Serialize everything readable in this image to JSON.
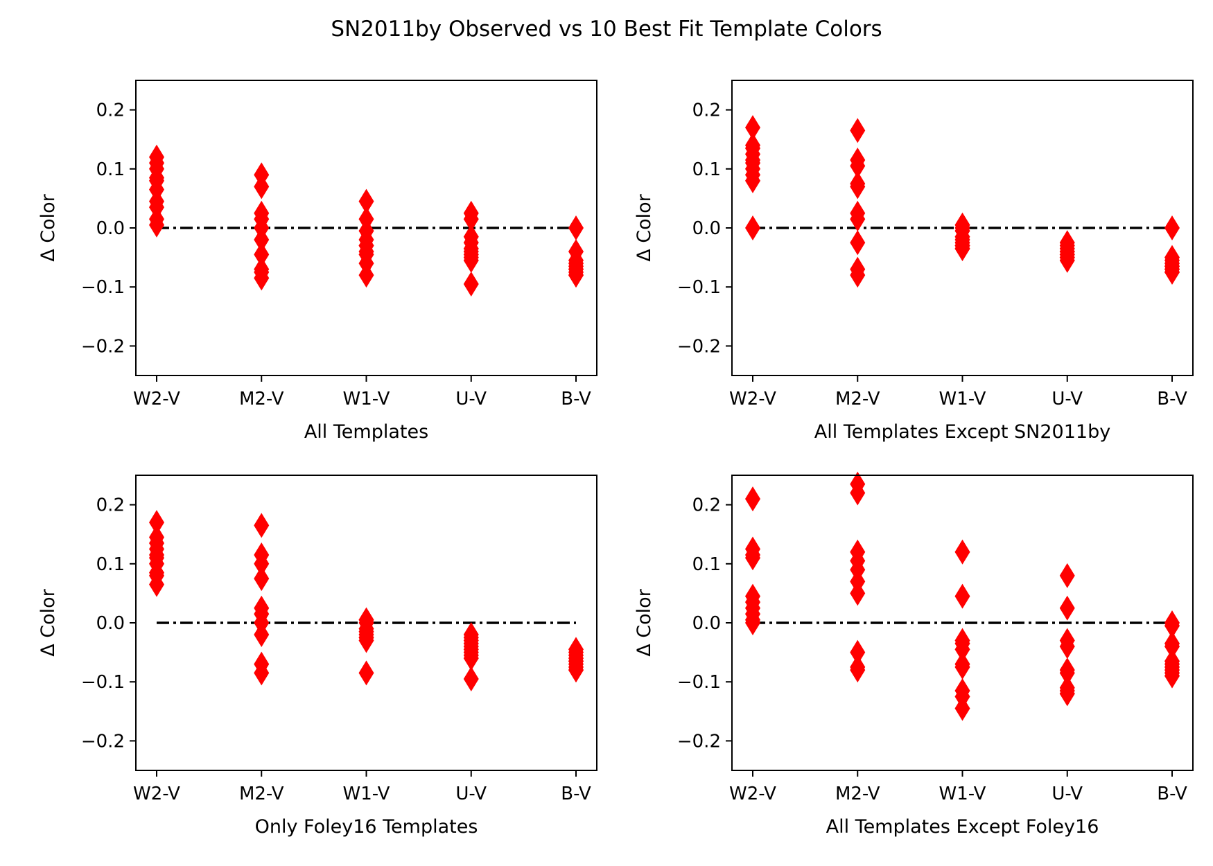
{
  "suptitle": "SN2011by Observed vs 10 Best Fit Template Colors",
  "colors": {
    "marker": "#ff0000",
    "zero_line": "#000000",
    "axes": "#000000",
    "background": "#ffffff"
  },
  "chart_data": [
    {
      "type": "scatter",
      "marker": "diamond",
      "xlabel": "All Templates",
      "ylabel": "Δ Color",
      "categories": [
        "W2-V",
        "M2-V",
        "W1-V",
        "U-V",
        "B-V"
      ],
      "ylim": [
        -0.25,
        0.25
      ],
      "yticks": [
        -0.2,
        -0.1,
        0.0,
        0.1,
        0.2
      ],
      "ytick_labels": [
        "−0.2",
        "−0.1",
        "0.0",
        "0.1",
        "0.2"
      ],
      "reference_line": {
        "y": 0.0,
        "style": "dash-dot"
      },
      "series": [
        {
          "category": "W2-V",
          "values": [
            0.12,
            0.11,
            0.1,
            0.085,
            0.08,
            0.065,
            0.045,
            0.035,
            0.015,
            0.005
          ]
        },
        {
          "category": "M2-V",
          "values": [
            0.09,
            0.07,
            0.025,
            0.015,
            0.0,
            -0.02,
            -0.045,
            -0.07,
            -0.075,
            -0.085
          ]
        },
        {
          "category": "W1-V",
          "values": [
            0.045,
            0.015,
            -0.005,
            -0.02,
            -0.03,
            -0.03,
            -0.04,
            -0.045,
            -0.06,
            -0.08
          ]
        },
        {
          "category": "U-V",
          "values": [
            0.025,
            0.015,
            -0.015,
            -0.025,
            -0.035,
            -0.04,
            -0.045,
            -0.05,
            -0.055,
            -0.095
          ]
        },
        {
          "category": "B-V",
          "values": [
            0.0,
            -0.04,
            -0.055,
            -0.06,
            -0.065,
            -0.07,
            -0.07,
            -0.075,
            -0.08,
            -0.08
          ]
        }
      ]
    },
    {
      "type": "scatter",
      "marker": "diamond",
      "xlabel": "All Templates Except SN2011by",
      "ylabel": "Δ Color",
      "categories": [
        "W2-V",
        "M2-V",
        "W1-V",
        "U-V",
        "B-V"
      ],
      "ylim": [
        -0.25,
        0.25
      ],
      "yticks": [
        -0.2,
        -0.1,
        0.0,
        0.1,
        0.2
      ],
      "ytick_labels": [
        "−0.2",
        "−0.1",
        "0.0",
        "0.1",
        "0.2"
      ],
      "reference_line": {
        "y": 0.0,
        "style": "dash-dot"
      },
      "series": [
        {
          "category": "W2-V",
          "values": [
            0.17,
            0.14,
            0.135,
            0.125,
            0.115,
            0.11,
            0.1,
            0.09,
            0.08,
            0.0
          ]
        },
        {
          "category": "M2-V",
          "values": [
            0.165,
            0.115,
            0.105,
            0.075,
            0.07,
            0.025,
            0.015,
            -0.025,
            -0.07,
            -0.08
          ]
        },
        {
          "category": "W1-V",
          "values": [
            0.005,
            0.0,
            -0.005,
            -0.015,
            -0.02,
            -0.025,
            -0.03,
            -0.03,
            -0.035,
            -0.035
          ]
        },
        {
          "category": "U-V",
          "values": [
            -0.025,
            -0.03,
            -0.035,
            -0.04,
            -0.04,
            -0.045,
            -0.045,
            -0.05,
            -0.05,
            -0.055
          ]
        },
        {
          "category": "B-V",
          "values": [
            0.0,
            -0.05,
            -0.055,
            -0.06,
            -0.065,
            -0.065,
            -0.07,
            -0.07,
            -0.075,
            -0.075
          ]
        }
      ]
    },
    {
      "type": "scatter",
      "marker": "diamond",
      "xlabel": "Only Foley16 Templates",
      "ylabel": "Δ Color",
      "categories": [
        "W2-V",
        "M2-V",
        "W1-V",
        "U-V",
        "B-V"
      ],
      "ylim": [
        -0.25,
        0.25
      ],
      "yticks": [
        -0.2,
        -0.1,
        0.0,
        0.1,
        0.2
      ],
      "ytick_labels": [
        "−0.2",
        "−0.1",
        "0.0",
        "0.1",
        "0.2"
      ],
      "reference_line": {
        "y": 0.0,
        "style": "dash-dot"
      },
      "series": [
        {
          "category": "W2-V",
          "values": [
            0.17,
            0.145,
            0.135,
            0.125,
            0.115,
            0.11,
            0.1,
            0.085,
            0.08,
            0.065
          ]
        },
        {
          "category": "M2-V",
          "values": [
            0.165,
            0.115,
            0.1,
            0.075,
            0.025,
            0.015,
            0.0,
            -0.02,
            -0.07,
            -0.085
          ]
        },
        {
          "category": "W1-V",
          "values": [
            0.005,
            0.005,
            0.0,
            -0.01,
            -0.015,
            -0.02,
            -0.025,
            -0.025,
            -0.03,
            -0.085
          ]
        },
        {
          "category": "U-V",
          "values": [
            -0.02,
            -0.025,
            -0.03,
            -0.035,
            -0.04,
            -0.045,
            -0.05,
            -0.055,
            -0.06,
            -0.095
          ]
        },
        {
          "category": "B-V",
          "values": [
            -0.045,
            -0.05,
            -0.055,
            -0.06,
            -0.065,
            -0.065,
            -0.07,
            -0.075,
            -0.08,
            -0.08
          ]
        }
      ]
    },
    {
      "type": "scatter",
      "marker": "diamond",
      "xlabel": "All Templates Except Foley16",
      "ylabel": "Δ Color",
      "categories": [
        "W2-V",
        "M2-V",
        "W1-V",
        "U-V",
        "B-V"
      ],
      "ylim": [
        -0.25,
        0.25
      ],
      "yticks": [
        -0.2,
        -0.1,
        0.0,
        0.1,
        0.2
      ],
      "ytick_labels": [
        "−0.2",
        "−0.1",
        "0.0",
        "0.1",
        "0.2"
      ],
      "reference_line": {
        "y": 0.0,
        "style": "dash-dot"
      },
      "series": [
        {
          "category": "W2-V",
          "values": [
            0.21,
            0.125,
            0.115,
            0.11,
            0.045,
            0.035,
            0.025,
            0.015,
            0.005,
            0.0
          ]
        },
        {
          "category": "M2-V",
          "values": [
            0.235,
            0.22,
            0.12,
            0.105,
            0.09,
            0.07,
            0.05,
            -0.05,
            -0.075,
            -0.08
          ]
        },
        {
          "category": "W1-V",
          "values": [
            0.12,
            0.045,
            -0.03,
            -0.035,
            -0.045,
            -0.07,
            -0.075,
            -0.115,
            -0.125,
            -0.145
          ]
        },
        {
          "category": "U-V",
          "values": [
            0.08,
            0.025,
            -0.03,
            -0.04,
            -0.08,
            -0.085,
            -0.11,
            -0.115,
            -0.12,
            -0.12
          ]
        },
        {
          "category": "B-V",
          "values": [
            0.0,
            -0.005,
            -0.035,
            -0.04,
            -0.065,
            -0.07,
            -0.075,
            -0.08,
            -0.085,
            -0.09
          ]
        }
      ]
    }
  ]
}
